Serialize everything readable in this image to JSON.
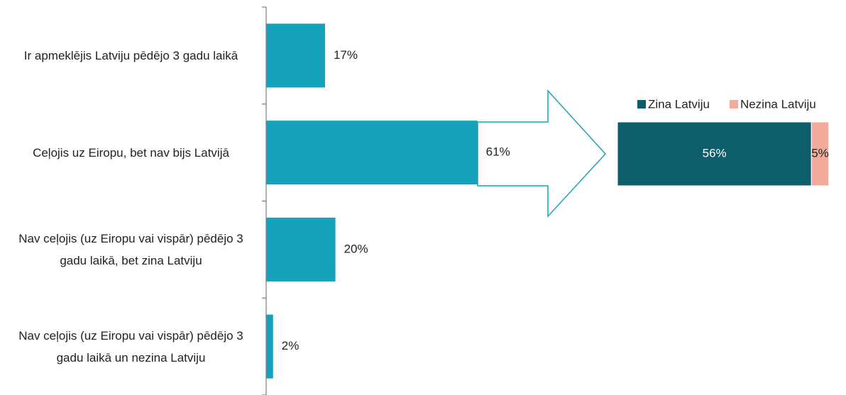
{
  "chart_data": [
    {
      "type": "bar",
      "orientation": "horizontal",
      "categories": [
        "Ir apmeklējis Latviju pēdējo 3 gadu laikā",
        "Ceļojis uz Eiropu, bet nav bijs Latvijā",
        "Nav ceļojis (uz Eiropu vai vispār) pēdējo 3 gadu laikā, bet zina Latviju",
        "Nav ceļojis (uz Eiropu vai vispār) pēdējo 3 gadu laikā un nezina Latviju"
      ],
      "values": [
        17,
        61,
        20,
        2
      ],
      "value_labels": [
        "17%",
        "61%",
        "20%",
        "2%"
      ],
      "color": "#17a2bb"
    },
    {
      "type": "stacked_bar",
      "orientation": "horizontal",
      "legend": "top",
      "series": [
        {
          "name": "Zina Latviju",
          "color": "#0d5e6a",
          "values": [
            56
          ],
          "value_labels": [
            "56%"
          ]
        },
        {
          "name": "Nezina Latviju",
          "color": "#f2aa9b",
          "values": [
            5
          ],
          "value_labels": [
            "5%"
          ]
        }
      ]
    }
  ]
}
